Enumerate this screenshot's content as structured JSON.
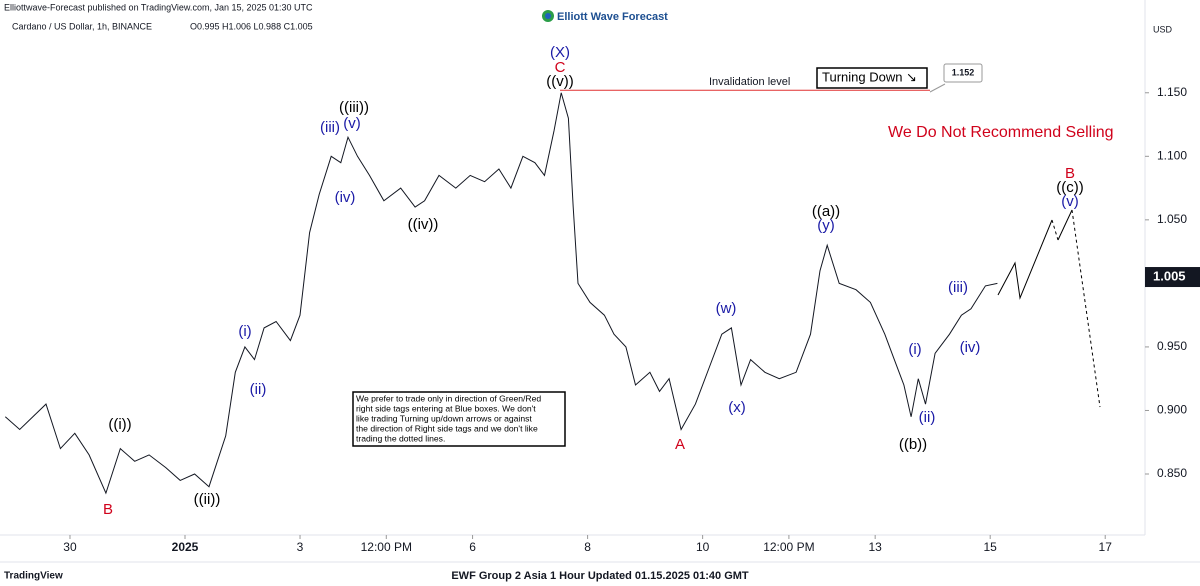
{
  "chart_data": {
    "type": "line",
    "header": "Elliottwave-Forecast published on TradingView.com, Jan 15, 2025 01:30 UTC",
    "symbol": "Cardano / US Dollar, 1h, BINANCE",
    "ohlc": "O0.995 H1.006 L0.988 C1.005",
    "logo": "Elliott Wave Forecast",
    "currency": "USD",
    "brand": "TradingView",
    "footer": "EWF Group 2 Asia 1 Hour Updated 01.15.2025 01:40 GMT",
    "headline": "We Do Not Recommend Selling",
    "turning": "Turning Down ↘",
    "invalidation": {
      "value": 1.152,
      "label": "1.152",
      "text": "Invalidation level"
    },
    "last_price": {
      "value": 1.005,
      "label": "1.005"
    },
    "note": [
      "We prefer to trade only in direction of Green/Red",
      "right side tags entering at Blue boxes. We don't",
      "like trading Turning up/down arrows or against",
      "the direction of Right side tags and we don't like",
      "trading the dotted lines."
    ],
    "color": "#131722",
    "x": [
      -27,
      -21,
      -10,
      -4,
      2,
      8,
      15,
      21,
      27,
      33,
      40,
      46,
      52,
      58,
      65,
      69,
      73,
      77,
      81,
      86,
      92,
      96,
      100,
      104,
      109,
      113,
      116,
      120,
      125,
      131,
      138,
      144,
      148,
      154,
      161,
      167,
      173,
      179,
      184,
      189,
      194,
      198,
      202,
      205,
      208,
      210,
      212,
      217,
      223,
      227,
      232,
      236,
      242,
      246,
      250,
      255,
      261,
      267,
      272,
      276,
      280,
      284,
      290,
      296,
      303,
      309,
      313,
      316,
      321,
      328,
      334,
      340,
      344,
      348,
      351,
      354,
      357,
      361,
      367,
      372,
      376,
      382,
      387
    ],
    "values": [
      0.895,
      0.885,
      0.905,
      0.87,
      0.882,
      0.865,
      0.835,
      0.87,
      0.86,
      0.865,
      0.855,
      0.845,
      0.85,
      0.84,
      0.88,
      0.93,
      0.95,
      0.94,
      0.965,
      0.97,
      0.955,
      0.975,
      1.04,
      1.07,
      1.1,
      1.095,
      1.115,
      1.1,
      1.085,
      1.065,
      1.075,
      1.06,
      1.065,
      1.085,
      1.075,
      1.085,
      1.08,
      1.09,
      1.075,
      1.1,
      1.095,
      1.085,
      1.12,
      1.15,
      1.13,
      1.06,
      1.0,
      0.985,
      0.975,
      0.96,
      0.95,
      0.92,
      0.93,
      0.915,
      0.925,
      0.885,
      0.905,
      0.935,
      0.96,
      0.965,
      0.92,
      0.94,
      0.93,
      0.925,
      0.93,
      0.96,
      1.01,
      1.03,
      1.0,
      0.995,
      0.985,
      0.96,
      0.94,
      0.92,
      0.895,
      0.925,
      0.905,
      0.945,
      0.96,
      0.975,
      0.98,
      0.998,
      1.0
    ],
    "xlim": [
      -29.2,
      448.6
    ],
    "ylim": [
      0.802,
      1.223
    ],
    "xticks": [
      {
        "value": 0,
        "label": "30"
      },
      {
        "value": 48,
        "label": "2025"
      },
      {
        "value": 96,
        "label": "3"
      },
      {
        "value": 132,
        "label": "12:00 PM"
      },
      {
        "value": 168,
        "label": "6"
      },
      {
        "value": 216,
        "label": "8"
      },
      {
        "value": 264,
        "label": "10"
      },
      {
        "value": 300,
        "label": "12:00 PM"
      },
      {
        "value": 336,
        "label": "13"
      },
      {
        "value": 384,
        "label": "15"
      },
      {
        "value": 432,
        "label": "17"
      }
    ],
    "yticks": [
      {
        "value": 0.85,
        "label": "0.850"
      },
      {
        "value": 0.9,
        "label": "0.900"
      },
      {
        "value": 0.95,
        "label": "0.950"
      },
      {
        "value": 1.0,
        "label": "1.000"
      },
      {
        "value": 1.05,
        "label": "1.050"
      },
      {
        "value": 1.1,
        "label": "1.100"
      },
      {
        "value": 1.15,
        "label": "1.150"
      }
    ],
    "annotations": [
      {
        "text": "((i))",
        "color": "#000000"
      },
      {
        "text": "B",
        "color": "#d0021b"
      },
      {
        "text": "((ii))",
        "color": "#000000"
      },
      {
        "text": "(i)",
        "color": "#1a1aa6"
      },
      {
        "text": "(ii)",
        "color": "#1a1aa6"
      },
      {
        "text": "(iii)",
        "color": "#1a1aa6"
      },
      {
        "text": "(v)",
        "color": "#1a1aa6"
      },
      {
        "text": "((iii))",
        "color": "#000000"
      },
      {
        "text": "(iv)",
        "color": "#1a1aa6"
      },
      {
        "text": "((iv))",
        "color": "#000000"
      },
      {
        "text": "(X)",
        "color": "#1a1aa6"
      },
      {
        "text": "C",
        "color": "#d0021b"
      },
      {
        "text": "((v))",
        "color": "#000000"
      },
      {
        "text": "A",
        "color": "#d0021b"
      },
      {
        "text": "(w)",
        "color": "#1a1aa6"
      },
      {
        "text": "(x)",
        "color": "#1a1aa6"
      },
      {
        "text": "((a))",
        "color": "#000000"
      },
      {
        "text": "(y)",
        "color": "#1a1aa6"
      },
      {
        "text": "((b))",
        "color": "#000000"
      },
      {
        "text": "(i)",
        "color": "#1a1aa6"
      },
      {
        "text": "(ii)",
        "color": "#1a1aa6"
      },
      {
        "text": "(iii)",
        "color": "#1a1aa6"
      },
      {
        "text": "(iv)",
        "color": "#1a1aa6"
      },
      {
        "text": "B",
        "color": "#d0021b"
      },
      {
        "text": "((c))",
        "color": "#000000"
      },
      {
        "text": "(v)",
        "color": "#1a1aa6"
      }
    ]
  }
}
